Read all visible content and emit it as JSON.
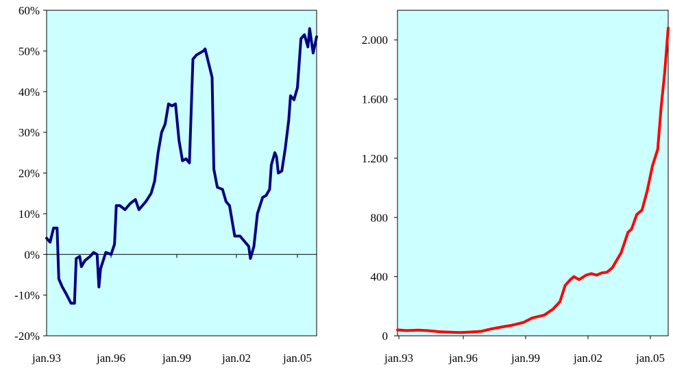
{
  "chart_data": [
    {
      "type": "line",
      "title": "",
      "xlabel": "",
      "ylabel": "",
      "x_tick_labels": [
        "jan.93",
        "jan.96",
        "jan.99",
        "jan.02",
        "jan.05"
      ],
      "x_range": [
        "1993-01",
        "2005-12"
      ],
      "ylim": [
        -20,
        60
      ],
      "y_tick_values": [
        -20,
        -10,
        0,
        10,
        20,
        30,
        40,
        50,
        60
      ],
      "y_tick_labels": [
        "-20%",
        "-10%",
        "0%",
        "10%",
        "20%",
        "30%",
        "40%",
        "50%",
        "60%"
      ],
      "y_unit": "%",
      "grid": false,
      "zero_line": true,
      "plot_background": "#ccffff",
      "series": [
        {
          "color": "#000080",
          "points": [
            [
              "1993-01",
              4
            ],
            [
              "1993-03",
              3
            ],
            [
              "1993-05",
              6.5
            ],
            [
              "1993-07",
              6.5
            ],
            [
              "1993-08",
              -6
            ],
            [
              "1993-10",
              -8
            ],
            [
              "1993-12",
              -9.5
            ],
            [
              "1994-03",
              -12
            ],
            [
              "1994-05",
              -12
            ],
            [
              "1994-06",
              -1
            ],
            [
              "1994-08",
              -0.5
            ],
            [
              "1994-09",
              -3
            ],
            [
              "1994-11",
              -1.5
            ],
            [
              "1995-02",
              -0.5
            ],
            [
              "1995-04",
              0.5
            ],
            [
              "1995-06",
              0
            ],
            [
              "1995-07",
              -8
            ],
            [
              "1995-08",
              -3.5
            ],
            [
              "1995-11",
              0.5
            ],
            [
              "1996-02",
              0
            ],
            [
              "1996-04",
              2.5
            ],
            [
              "1996-05",
              12
            ],
            [
              "1996-07",
              12
            ],
            [
              "1996-10",
              11
            ],
            [
              "1997-01",
              12.5
            ],
            [
              "1997-04",
              13.5
            ],
            [
              "1997-06",
              11
            ],
            [
              "1997-08",
              12
            ],
            [
              "1997-10",
              13
            ],
            [
              "1998-01",
              15
            ],
            [
              "1998-03",
              18
            ],
            [
              "1998-05",
              25
            ],
            [
              "1998-07",
              30
            ],
            [
              "1998-09",
              32
            ],
            [
              "1998-11",
              37
            ],
            [
              "1999-01",
              36.5
            ],
            [
              "1999-03",
              37
            ],
            [
              "1999-05",
              28
            ],
            [
              "1999-07",
              23
            ],
            [
              "1999-09",
              23.5
            ],
            [
              "1999-11",
              22.5
            ],
            [
              "2000-01",
              48
            ],
            [
              "2000-03",
              49
            ],
            [
              "2000-05",
              49.5
            ],
            [
              "2000-07",
              50
            ],
            [
              "2000-08",
              50.5
            ],
            [
              "2000-10",
              47
            ],
            [
              "2000-12",
              43.5
            ],
            [
              "2001-01",
              21
            ],
            [
              "2001-03",
              16.5
            ],
            [
              "2001-06",
              16
            ],
            [
              "2001-08",
              13
            ],
            [
              "2001-10",
              12
            ],
            [
              "2002-01",
              4.5
            ],
            [
              "2002-04",
              4.5
            ],
            [
              "2002-07",
              3
            ],
            [
              "2002-09",
              2
            ],
            [
              "2002-10",
              -1
            ],
            [
              "2002-12",
              2
            ],
            [
              "2003-02",
              10
            ],
            [
              "2003-05",
              14
            ],
            [
              "2003-07",
              14.5
            ],
            [
              "2003-09",
              16
            ],
            [
              "2003-10",
              22
            ],
            [
              "2003-12",
              25
            ],
            [
              "2004-01",
              24
            ],
            [
              "2004-02",
              20
            ],
            [
              "2004-04",
              20.5
            ],
            [
              "2004-06",
              26
            ],
            [
              "2004-08",
              33
            ],
            [
              "2004-09",
              39
            ],
            [
              "2004-11",
              38
            ],
            [
              "2005-01",
              41
            ],
            [
              "2005-03",
              53
            ],
            [
              "2005-05",
              54
            ],
            [
              "2005-07",
              51
            ],
            [
              "2005-08",
              55.5
            ],
            [
              "2005-10",
              49.5
            ],
            [
              "2005-12",
              53.5
            ]
          ]
        }
      ]
    },
    {
      "type": "line",
      "title": "",
      "xlabel": "",
      "ylabel": "",
      "x_tick_labels": [
        "jan.93",
        "jan.96",
        "jan.99",
        "jan.02",
        "jan.05"
      ],
      "x_range": [
        "1993-01",
        "2005-12"
      ],
      "ylim": [
        0,
        2200
      ],
      "y_tick_values": [
        0,
        400,
        800,
        1200,
        1600,
        2000
      ],
      "y_tick_labels": [
        "0",
        "400",
        "800",
        "1.200",
        "1.600",
        "2.000"
      ],
      "grid": false,
      "plot_background": "#ccffff",
      "series": [
        {
          "color": "#ff0000",
          "points": [
            [
              "1993-01",
              40
            ],
            [
              "1993-06",
              35
            ],
            [
              "1994-01",
              38
            ],
            [
              "1994-06",
              35
            ],
            [
              "1995-01",
              28
            ],
            [
              "1995-06",
              25
            ],
            [
              "1996-01",
              22
            ],
            [
              "1996-06",
              25
            ],
            [
              "1997-01",
              30
            ],
            [
              "1997-06",
              45
            ],
            [
              "1998-01",
              60
            ],
            [
              "1998-06",
              70
            ],
            [
              "1999-01",
              90
            ],
            [
              "1999-06",
              120
            ],
            [
              "2000-01",
              140
            ],
            [
              "2000-06",
              180
            ],
            [
              "2000-10",
              230
            ],
            [
              "2001-01",
              340
            ],
            [
              "2001-04",
              380
            ],
            [
              "2001-06",
              400
            ],
            [
              "2001-09",
              380
            ],
            [
              "2002-01",
              410
            ],
            [
              "2002-04",
              420
            ],
            [
              "2002-07",
              410
            ],
            [
              "2002-10",
              425
            ],
            [
              "2003-01",
              430
            ],
            [
              "2003-04",
              460
            ],
            [
              "2003-06",
              500
            ],
            [
              "2003-09",
              560
            ],
            [
              "2004-01",
              700
            ],
            [
              "2004-03",
              720
            ],
            [
              "2004-06",
              820
            ],
            [
              "2004-09",
              850
            ],
            [
              "2004-12",
              980
            ],
            [
              "2005-03",
              1150
            ],
            [
              "2005-06",
              1260
            ],
            [
              "2005-08",
              1550
            ],
            [
              "2005-10",
              1780
            ],
            [
              "2005-12",
              2080
            ]
          ]
        }
      ]
    }
  ]
}
